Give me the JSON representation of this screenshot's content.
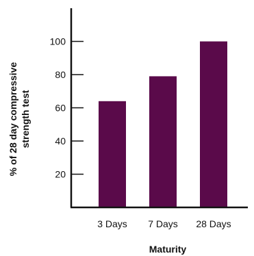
{
  "chart_data": {
    "type": "bar",
    "title": "",
    "xlabel": "Maturity",
    "ylabel_lines": [
      "% of 28 day compressive",
      "strength test"
    ],
    "categories": [
      "3 Days",
      "7 Days",
      "28 Days"
    ],
    "values": [
      64,
      79,
      100
    ],
    "ylim": [
      0,
      120
    ],
    "yticks": [
      20,
      40,
      60,
      80,
      100
    ],
    "bar_color": "#5a0a4a",
    "grid": false,
    "legend": "none"
  }
}
